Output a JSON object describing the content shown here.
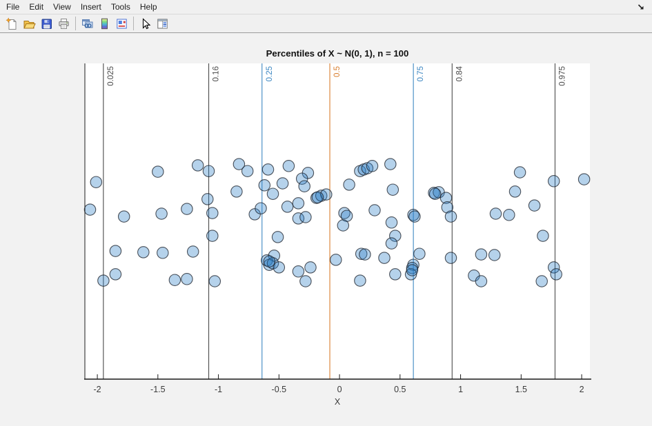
{
  "window": {
    "menu": {
      "items": [
        "File",
        "Edit",
        "View",
        "Insert",
        "Tools",
        "Help"
      ]
    },
    "toolbar": {
      "buttons": [
        "new-figure",
        "open",
        "save",
        "print",
        "link-windows",
        "colormap",
        "properties",
        "pointer",
        "panel-toggle"
      ]
    }
  },
  "chart_data": {
    "type": "scatter",
    "title": "Percentiles of X ~ N(0, 1), n = 100",
    "xlabel": "X",
    "ylabel": "",
    "xlim": [
      -2.103,
      2.068
    ],
    "xticks": [
      -2,
      -1.5,
      -1,
      -0.5,
      0,
      0.5,
      1,
      1.5,
      2
    ],
    "grid": false,
    "legend": "none",
    "axes": {
      "spine_color": "#1a1a1a",
      "tick_label_color": "#3a3a3a",
      "background": "#ffffff"
    },
    "marker": {
      "fill": "#2a7ec6",
      "fill_opacity": 0.35,
      "edge": "#1e232b",
      "edge_opacity": 0.78,
      "radius": 8.2
    },
    "percentile_lines": [
      {
        "label": "0.025",
        "x": -1.95,
        "color": "#4a4a4a"
      },
      {
        "label": "0.16",
        "x": -1.08,
        "color": "#4a4a4a"
      },
      {
        "label": "0.25",
        "x": -0.64,
        "color": "#3d87c2"
      },
      {
        "label": "0.5",
        "x": -0.08,
        "color": "#d97e2e"
      },
      {
        "label": "0.75",
        "x": 0.61,
        "color": "#3d87c2"
      },
      {
        "label": "0.84",
        "x": 0.93,
        "color": "#4a4a4a"
      },
      {
        "label": "0.975",
        "x": 1.78,
        "color": "#4a4a4a"
      }
    ],
    "y_note": "y is random vertical jitter expressed as fraction of plot height from bottom axis (no y-axis shown)",
    "points": [
      [
        -2.01,
        0.624
      ],
      [
        -2.06,
        0.537
      ],
      [
        -1.78,
        0.515
      ],
      [
        -1.5,
        0.657
      ],
      [
        -1.85,
        0.406
      ],
      [
        -1.95,
        0.312
      ],
      [
        -1.85,
        0.332
      ],
      [
        -1.62,
        0.402
      ],
      [
        -1.46,
        0.4
      ],
      [
        -1.47,
        0.524
      ],
      [
        -1.26,
        0.539
      ],
      [
        -1.17,
        0.677
      ],
      [
        -1.08,
        0.659
      ],
      [
        -1.09,
        0.57
      ],
      [
        -1.21,
        0.404
      ],
      [
        -1.36,
        0.314
      ],
      [
        -1.26,
        0.317
      ],
      [
        -1.03,
        0.31
      ],
      [
        -1.05,
        0.454
      ],
      [
        -0.83,
        0.681
      ],
      [
        -0.76,
        0.659
      ],
      [
        -0.85,
        0.594
      ],
      [
        -1.05,
        0.526
      ],
      [
        -0.7,
        0.522
      ],
      [
        -0.59,
        0.664
      ],
      [
        -0.42,
        0.675
      ],
      [
        -0.62,
        0.614
      ],
      [
        -0.47,
        0.62
      ],
      [
        -0.55,
        0.587
      ],
      [
        -0.26,
        0.653
      ],
      [
        -0.31,
        0.635
      ],
      [
        -0.29,
        0.611
      ],
      [
        -0.19,
        0.574
      ],
      [
        -0.15,
        0.581
      ],
      [
        -0.11,
        0.585
      ],
      [
        0.17,
        0.659
      ],
      [
        0.2,
        0.664
      ],
      [
        0.23,
        0.668
      ],
      [
        0.27,
        0.675
      ],
      [
        0.42,
        0.681
      ],
      [
        0.08,
        0.616
      ],
      [
        0.44,
        0.6
      ],
      [
        -0.65,
        0.541
      ],
      [
        -0.43,
        0.546
      ],
      [
        -0.34,
        0.557
      ],
      [
        -0.34,
        0.509
      ],
      [
        -0.28,
        0.513
      ],
      [
        0.04,
        0.526
      ],
      [
        0.06,
        0.517
      ],
      [
        0.03,
        0.487
      ],
      [
        0.29,
        0.535
      ],
      [
        0.61,
        0.52
      ],
      [
        0.62,
        0.515
      ],
      [
        0.43,
        0.496
      ],
      [
        0.46,
        0.454
      ],
      [
        -0.51,
        0.45
      ],
      [
        0.43,
        0.43
      ],
      [
        -0.54,
        0.391
      ],
      [
        -0.6,
        0.376
      ],
      [
        -0.58,
        0.362
      ],
      [
        -0.55,
        0.367
      ],
      [
        -0.5,
        0.354
      ],
      [
        -0.24,
        0.354
      ],
      [
        -0.34,
        0.341
      ],
      [
        -0.28,
        0.31
      ],
      [
        -0.03,
        0.378
      ],
      [
        0.18,
        0.397
      ],
      [
        0.21,
        0.395
      ],
      [
        0.37,
        0.384
      ],
      [
        0.17,
        0.312
      ],
      [
        0.46,
        0.332
      ],
      [
        0.61,
        0.362
      ],
      [
        0.6,
        0.352
      ],
      [
        0.59,
        0.332
      ],
      [
        0.66,
        0.397
      ],
      [
        1.49,
        0.655
      ],
      [
        1.77,
        0.627
      ],
      [
        2.02,
        0.633
      ],
      [
        0.78,
        0.59
      ],
      [
        0.82,
        0.592
      ],
      [
        0.88,
        0.574
      ],
      [
        0.89,
        0.544
      ],
      [
        0.92,
        0.515
      ],
      [
        1.45,
        0.594
      ],
      [
        1.61,
        0.55
      ],
      [
        1.29,
        0.524
      ],
      [
        1.4,
        0.52
      ],
      [
        1.68,
        0.454
      ],
      [
        0.92,
        0.384
      ],
      [
        1.17,
        0.395
      ],
      [
        1.28,
        0.393
      ],
      [
        1.11,
        0.328
      ],
      [
        1.17,
        0.31
      ],
      [
        1.77,
        0.354
      ],
      [
        1.79,
        0.332
      ],
      [
        1.67,
        0.31
      ],
      [
        -0.58,
        0.373
      ],
      [
        -0.18,
        0.576
      ],
      [
        0.6,
        0.345
      ],
      [
        0.79,
        0.587
      ]
    ]
  }
}
